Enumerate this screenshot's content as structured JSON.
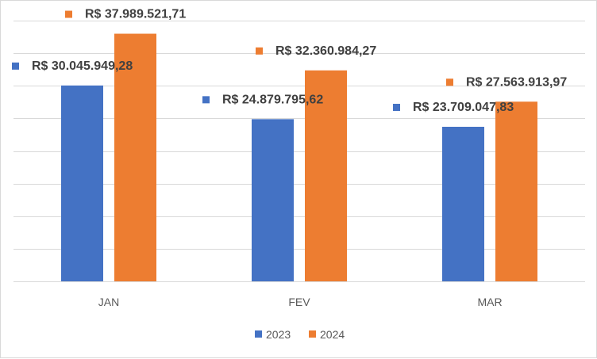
{
  "chart_data": {
    "type": "bar",
    "categories": [
      "JAN",
      "FEV",
      "MAR"
    ],
    "series": [
      {
        "name": "2023",
        "color": "#4472c4",
        "values": [
          30045949.28,
          24879795.62,
          23709047.83
        ],
        "labels": [
          "R$ 30.045.949,28",
          "R$ 24.879.795,62",
          "R$ 23.709.047,83"
        ]
      },
      {
        "name": "2024",
        "color": "#ed7d31",
        "values": [
          37989521.71,
          32360984.27,
          27563913.97
        ],
        "labels": [
          "R$ 37.989.521,71",
          "R$ 32.360.984,27",
          "R$ 27.563.913,97"
        ]
      }
    ],
    "ylim": [
      0,
      40000000
    ],
    "grid": true,
    "legend": "bottom-center"
  }
}
